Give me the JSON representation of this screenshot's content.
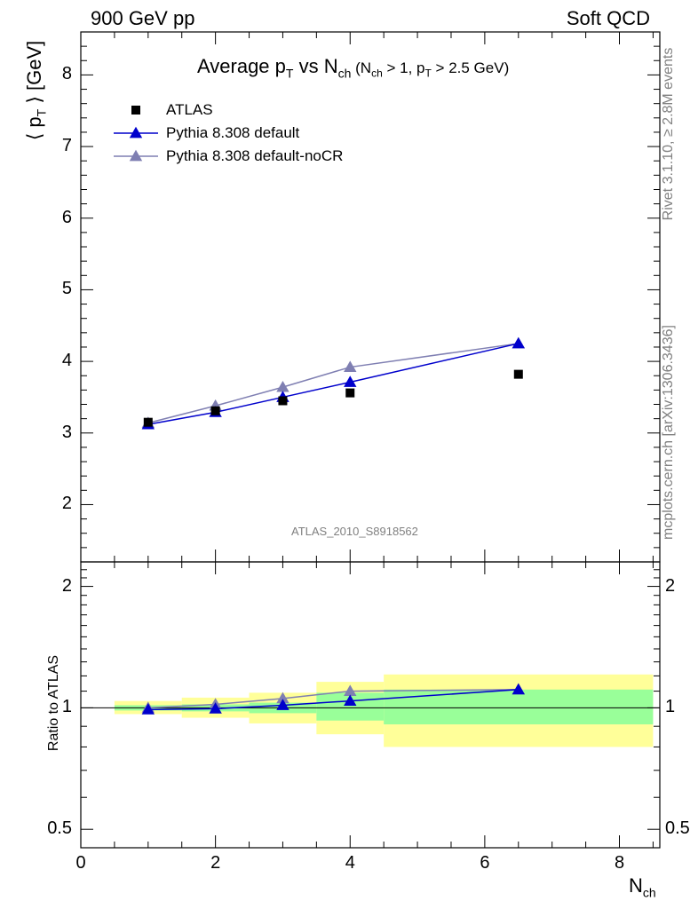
{
  "header": {
    "left": "900 GeV pp",
    "right": "Soft QCD"
  },
  "side_labels": {
    "rivet": "Rivet 3.1.10, ≥ 2.8M events",
    "mcplots": "mcplots.cern.ch [arXiv:1306.3436]"
  },
  "analysis_id": "ATLAS_2010_S8918562",
  "chart_data": [
    {
      "panel": "main",
      "type": "line",
      "title": "Average pT vs Nch (Nch > 1, pT > 2.5 GeV)",
      "ylabel": "⟨ pT ⟩ [GeV]",
      "xlim": [
        0,
        8.6
      ],
      "ylim": [
        1.2,
        8.6
      ],
      "yticks": [
        2,
        3,
        4,
        5,
        6,
        7,
        8
      ],
      "series": [
        {
          "name": "ATLAS",
          "marker": "square",
          "color": "#000000",
          "x": [
            1,
            2,
            3,
            4,
            6.5
          ],
          "y": [
            3.15,
            3.31,
            3.45,
            3.56,
            3.82
          ]
        },
        {
          "name": "Pythia 8.308 default",
          "marker": "triangle",
          "color": "#0000cc",
          "x": [
            1,
            2,
            3,
            4,
            6.5
          ],
          "y": [
            3.12,
            3.29,
            3.5,
            3.71,
            4.25
          ]
        },
        {
          "name": "Pythia 8.308 default-noCR",
          "marker": "triangle",
          "color": "#7f7fb2",
          "x": [
            1,
            2,
            3,
            4,
            6.5
          ],
          "y": [
            3.14,
            3.38,
            3.64,
            3.92,
            4.25
          ]
        }
      ],
      "legend_position": "top-left"
    },
    {
      "panel": "ratio",
      "type": "line",
      "ylabel": "Ratio to ATLAS",
      "xlabel": "Nch",
      "xlim": [
        0,
        8.6
      ],
      "ylim": [
        0.45,
        2.3
      ],
      "xticks": [
        0,
        2,
        4,
        6,
        8
      ],
      "yticks": [
        0.5,
        1,
        2
      ],
      "bands": {
        "x_edges": [
          0.5,
          1.5,
          2.5,
          3.5,
          4.5,
          8.5
        ],
        "stat": {
          "lo": [
            0.985,
            0.98,
            0.97,
            0.93,
            0.91
          ],
          "hi": [
            1.015,
            1.02,
            1.03,
            1.09,
            1.11
          ]
        },
        "total": {
          "lo": [
            0.965,
            0.945,
            0.915,
            0.86,
            0.8
          ],
          "hi": [
            1.04,
            1.06,
            1.09,
            1.16,
            1.21
          ]
        },
        "stat_color": "#99ff99",
        "total_color": "#ffff99"
      },
      "series": [
        {
          "name": "Pythia 8.308 default",
          "color": "#0000cc",
          "x": [
            1,
            2,
            3,
            4,
            6.5
          ],
          "y": [
            0.99,
            0.995,
            1.015,
            1.04,
            1.11
          ]
        },
        {
          "name": "Pythia 8.308 default-noCR",
          "color": "#7f7fb2",
          "x": [
            1,
            2,
            3,
            4,
            6.5
          ],
          "y": [
            1.0,
            1.02,
            1.055,
            1.1,
            1.11
          ]
        }
      ]
    }
  ]
}
